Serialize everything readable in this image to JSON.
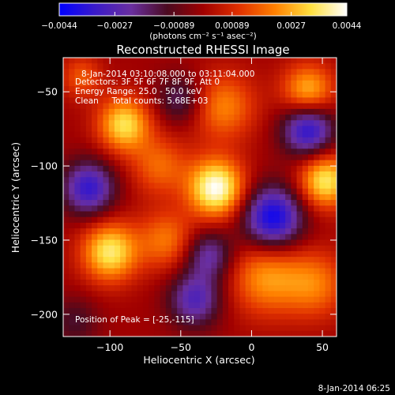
{
  "chart_data": {
    "type": "heatmap",
    "title": "Reconstructed RHESSI Image",
    "xlabel": "Heliocentric X (arcsec)",
    "ylabel": "Heliocentric Y (arcsec)",
    "xlim": [
      -133,
      60
    ],
    "ylim": [
      -215,
      -27
    ],
    "x_ticks": [
      {
        "value": -100,
        "label": "−100"
      },
      {
        "value": -50,
        "label": "−50"
      },
      {
        "value": 0,
        "label": "0"
      },
      {
        "value": 50,
        "label": "50"
      }
    ],
    "y_ticks": [
      {
        "value": -50,
        "label": "−50"
      },
      {
        "value": -100,
        "label": "−100"
      },
      {
        "value": -150,
        "label": "−150"
      },
      {
        "value": -200,
        "label": "−200"
      }
    ],
    "colorbar": {
      "range": [
        -0.0044,
        0.0044
      ],
      "ticks": [
        {
          "value": -0.0044,
          "label": "−0.0044"
        },
        {
          "value": -0.0027,
          "label": "−0.0027"
        },
        {
          "value": -0.00089,
          "label": "−0.00089"
        },
        {
          "value": 0.00089,
          "label": "0.00089"
        },
        {
          "value": 0.0027,
          "label": "0.0027"
        },
        {
          "value": 0.0044,
          "label": "0.0044"
        }
      ],
      "units_label": "(photons cm⁻² s⁻¹ asec⁻²)",
      "colors": [
        "#0000ff",
        "#3a1ac8",
        "#6a2fa0",
        "#4a0a20",
        "#a00000",
        "#e03000",
        "#ff8000",
        "#ffe040",
        "#ffffff"
      ]
    },
    "annotations": [
      "8-Jan-2014 03:10:08.000 to 03:11:04.000",
      "Detectors: 3F 5F 6F 7F 8F 9F, Att 0",
      "Energy Range: 25.0 - 50.0 keV",
      "Clean     Total counts: 5.68E+03"
    ],
    "peak_label": "Position of Peak = [-25,-115]",
    "peak": [
      -25,
      -115
    ],
    "sources": [
      {
        "x": -25,
        "y": -115,
        "amp": 0.0044,
        "sigma": 14
      },
      {
        "x": -90,
        "y": -72,
        "amp": 0.0034,
        "sigma": 13
      },
      {
        "x": -100,
        "y": -158,
        "amp": 0.0036,
        "sigma": 14
      },
      {
        "x": 52,
        "y": -110,
        "amp": 0.0036,
        "sigma": 13
      },
      {
        "x": 40,
        "y": -50,
        "amp": 0.003,
        "sigma": 13
      },
      {
        "x": -20,
        "y": -60,
        "amp": 0.0022,
        "sigma": 16
      },
      {
        "x": -60,
        "y": -150,
        "amp": 0.002,
        "sigma": 14
      },
      {
        "x": 10,
        "y": -175,
        "amp": 0.0024,
        "sigma": 18
      },
      {
        "x": 45,
        "y": -180,
        "amp": 0.002,
        "sigma": 16
      },
      {
        "x": -65,
        "y": -100,
        "amp": 0.0018,
        "sigma": 14
      },
      {
        "x": -120,
        "y": -40,
        "amp": 0.0016,
        "sigma": 10
      },
      {
        "x": 15,
        "y": -135,
        "amp": -0.0042,
        "sigma": 15
      },
      {
        "x": 40,
        "y": -75,
        "amp": -0.0038,
        "sigma": 13
      },
      {
        "x": -115,
        "y": -115,
        "amp": -0.0034,
        "sigma": 13
      },
      {
        "x": -40,
        "y": -190,
        "amp": -0.0028,
        "sigma": 13
      },
      {
        "x": -30,
        "y": -160,
        "amp": -0.0024,
        "sigma": 12
      },
      {
        "x": -50,
        "y": -55,
        "amp": -0.0018,
        "sigma": 12
      },
      {
        "x": -125,
        "y": -205,
        "amp": -0.0012,
        "sigma": 12
      }
    ]
  },
  "footer": {
    "timestamp": "8-Jan-2014 06:25"
  }
}
